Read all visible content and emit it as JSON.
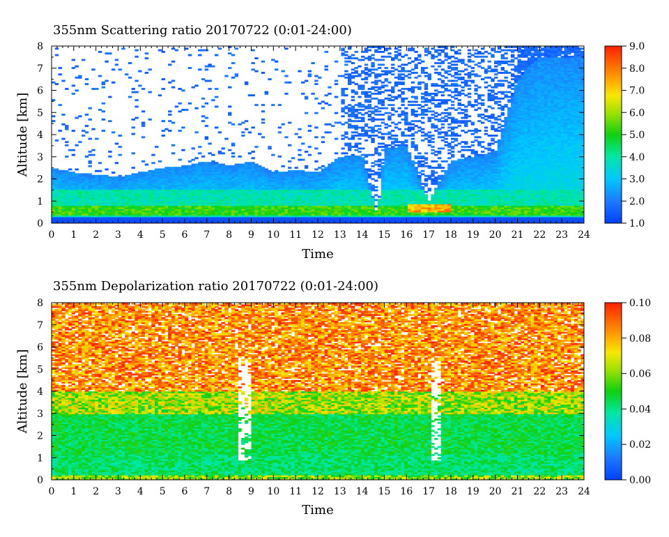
{
  "chart_data": [
    {
      "type": "heatmap",
      "title": "355nm Scattering ratio  20170722 (0:01-24:00)",
      "xlabel": "Time",
      "ylabel": "Altitude [km]",
      "xlim": [
        0,
        24
      ],
      "ylim": [
        0,
        8
      ],
      "x_ticks": [
        "0",
        "1",
        "2",
        "3",
        "4",
        "5",
        "6",
        "7",
        "8",
        "9",
        "10",
        "11",
        "12",
        "13",
        "14",
        "15",
        "16",
        "17",
        "18",
        "19",
        "20",
        "21",
        "22",
        "23",
        "24"
      ],
      "y_ticks": [
        "0",
        "1",
        "2",
        "3",
        "4",
        "5",
        "6",
        "7",
        "8"
      ],
      "colorbar": {
        "range": [
          1.0,
          9.0
        ],
        "ticks": [
          "1.0",
          "2.0",
          "3.0",
          "4.0",
          "5.0",
          "6.0",
          "7.0",
          "8.0",
          "9.0"
        ],
        "colormap": "blue-cyan-green-yellow-orange-red"
      },
      "features": {
        "boundary_layer_top_km": [
          [
            0,
            2.5
          ],
          [
            1,
            2.3
          ],
          [
            2,
            2.2
          ],
          [
            3,
            2.1
          ],
          [
            4,
            2.3
          ],
          [
            5,
            2.5
          ],
          [
            6,
            2.6
          ],
          [
            7,
            2.8
          ],
          [
            8,
            2.6
          ],
          [
            9,
            2.8
          ],
          [
            10,
            2.3
          ],
          [
            11,
            2.4
          ],
          [
            12,
            2.3
          ],
          [
            13,
            3.0
          ],
          [
            14,
            3.1
          ],
          [
            14.7,
            0.3
          ],
          [
            15,
            3.4
          ],
          [
            16,
            3.5
          ],
          [
            17,
            1.0
          ],
          [
            18,
            2.8
          ],
          [
            19,
            3.0
          ],
          [
            20,
            3.2
          ],
          [
            21,
            6.5
          ],
          [
            22,
            7.5
          ],
          [
            23,
            7.5
          ],
          [
            24,
            7.5
          ]
        ],
        "high_scatter_band_km": [
          0.4,
          0.8
        ],
        "ground_km": 0.3
      }
    },
    {
      "type": "heatmap",
      "title": "355nm Depolarization ratio  20170722 (0:01-24:00)",
      "xlabel": "Time",
      "ylabel": "Altitude [km]",
      "xlim": [
        0,
        24
      ],
      "ylim": [
        0,
        8
      ],
      "x_ticks": [
        "0",
        "1",
        "2",
        "3",
        "4",
        "5",
        "6",
        "7",
        "8",
        "9",
        "10",
        "11",
        "12",
        "13",
        "14",
        "15",
        "16",
        "17",
        "18",
        "19",
        "20",
        "21",
        "22",
        "23",
        "24"
      ],
      "y_ticks": [
        "0",
        "1",
        "2",
        "3",
        "4",
        "5",
        "6",
        "7",
        "8"
      ],
      "colorbar": {
        "range": [
          0.0,
          0.1
        ],
        "ticks": [
          "0.00",
          "0.02",
          "0.04",
          "0.06",
          "0.08",
          "0.10"
        ],
        "colormap": "blue-cyan-green-yellow-orange-red"
      },
      "features": {
        "low_depol_layer_km": [
          0,
          3.0
        ],
        "high_depol_noise_above_km": 4.0,
        "cloud_gap_times_h": [
          8.7,
          17.3
        ]
      }
    }
  ]
}
